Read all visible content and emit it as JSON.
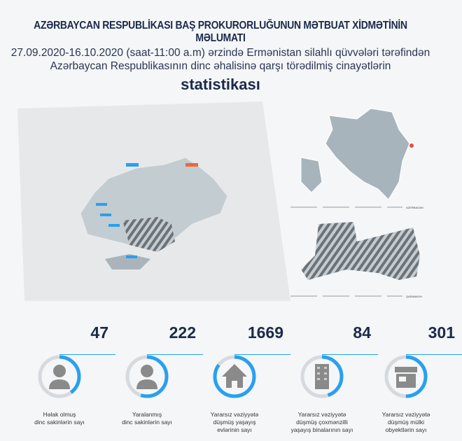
{
  "header": {
    "title": "AZƏRBAYCAN RESPUBLİKASI BAŞ PROKURORLUĞUNUN MƏTBUAT XİDMƏTİNİN MƏLUMATI",
    "subtitle_line1": "27.09.2020-16.10.2020 (saat-11:00 a.m) ərzində Ermənistan silahlı qüvvələri tərəfindən",
    "subtitle_line2": "Azərbaycan Respublikasının dinc əhalisinə qarşı törədilmiş cinayətlərin",
    "emphasis": "statistikası"
  },
  "maps": {
    "azerbaijan_label": "AZERBAIJAN",
    "karabakh_label": "QARABAGH"
  },
  "colors": {
    "accent": "#2aa0ee",
    "dark": "#1b2a4a",
    "ring": "#d6d9dd",
    "icon": "#8a8a8a",
    "marker": "#e74c3c"
  },
  "stats": [
    {
      "value": "47",
      "caption1": "Həlak olmuş",
      "caption2": "dinc sakinlərin sayı",
      "caption3": "",
      "icon": "person-icon",
      "fill": 0.4
    },
    {
      "value": "222",
      "caption1": "Yaralanmış",
      "caption2": "dinc sakinlərin sayı",
      "caption3": "",
      "icon": "person-icon",
      "fill": 0.55
    },
    {
      "value": "1669",
      "caption1": "Yararsız vəziyyətə",
      "caption2": "düşmüş yaşayış",
      "caption3": "evlərinin sayı",
      "icon": "house-icon",
      "fill": 0.85
    },
    {
      "value": "84",
      "caption1": "Yararsız vəziyyətə",
      "caption2": "düşmüş çoxmənzilli",
      "caption3": "yaşayış binalarının sayı",
      "icon": "building-icon",
      "fill": 0.45
    },
    {
      "value": "301",
      "caption1": "Yararsız vəziyyətə",
      "caption2": "düşmüş mülki",
      "caption3": "obyektlərin sayı",
      "icon": "shop-icon",
      "fill": 0.5
    }
  ]
}
